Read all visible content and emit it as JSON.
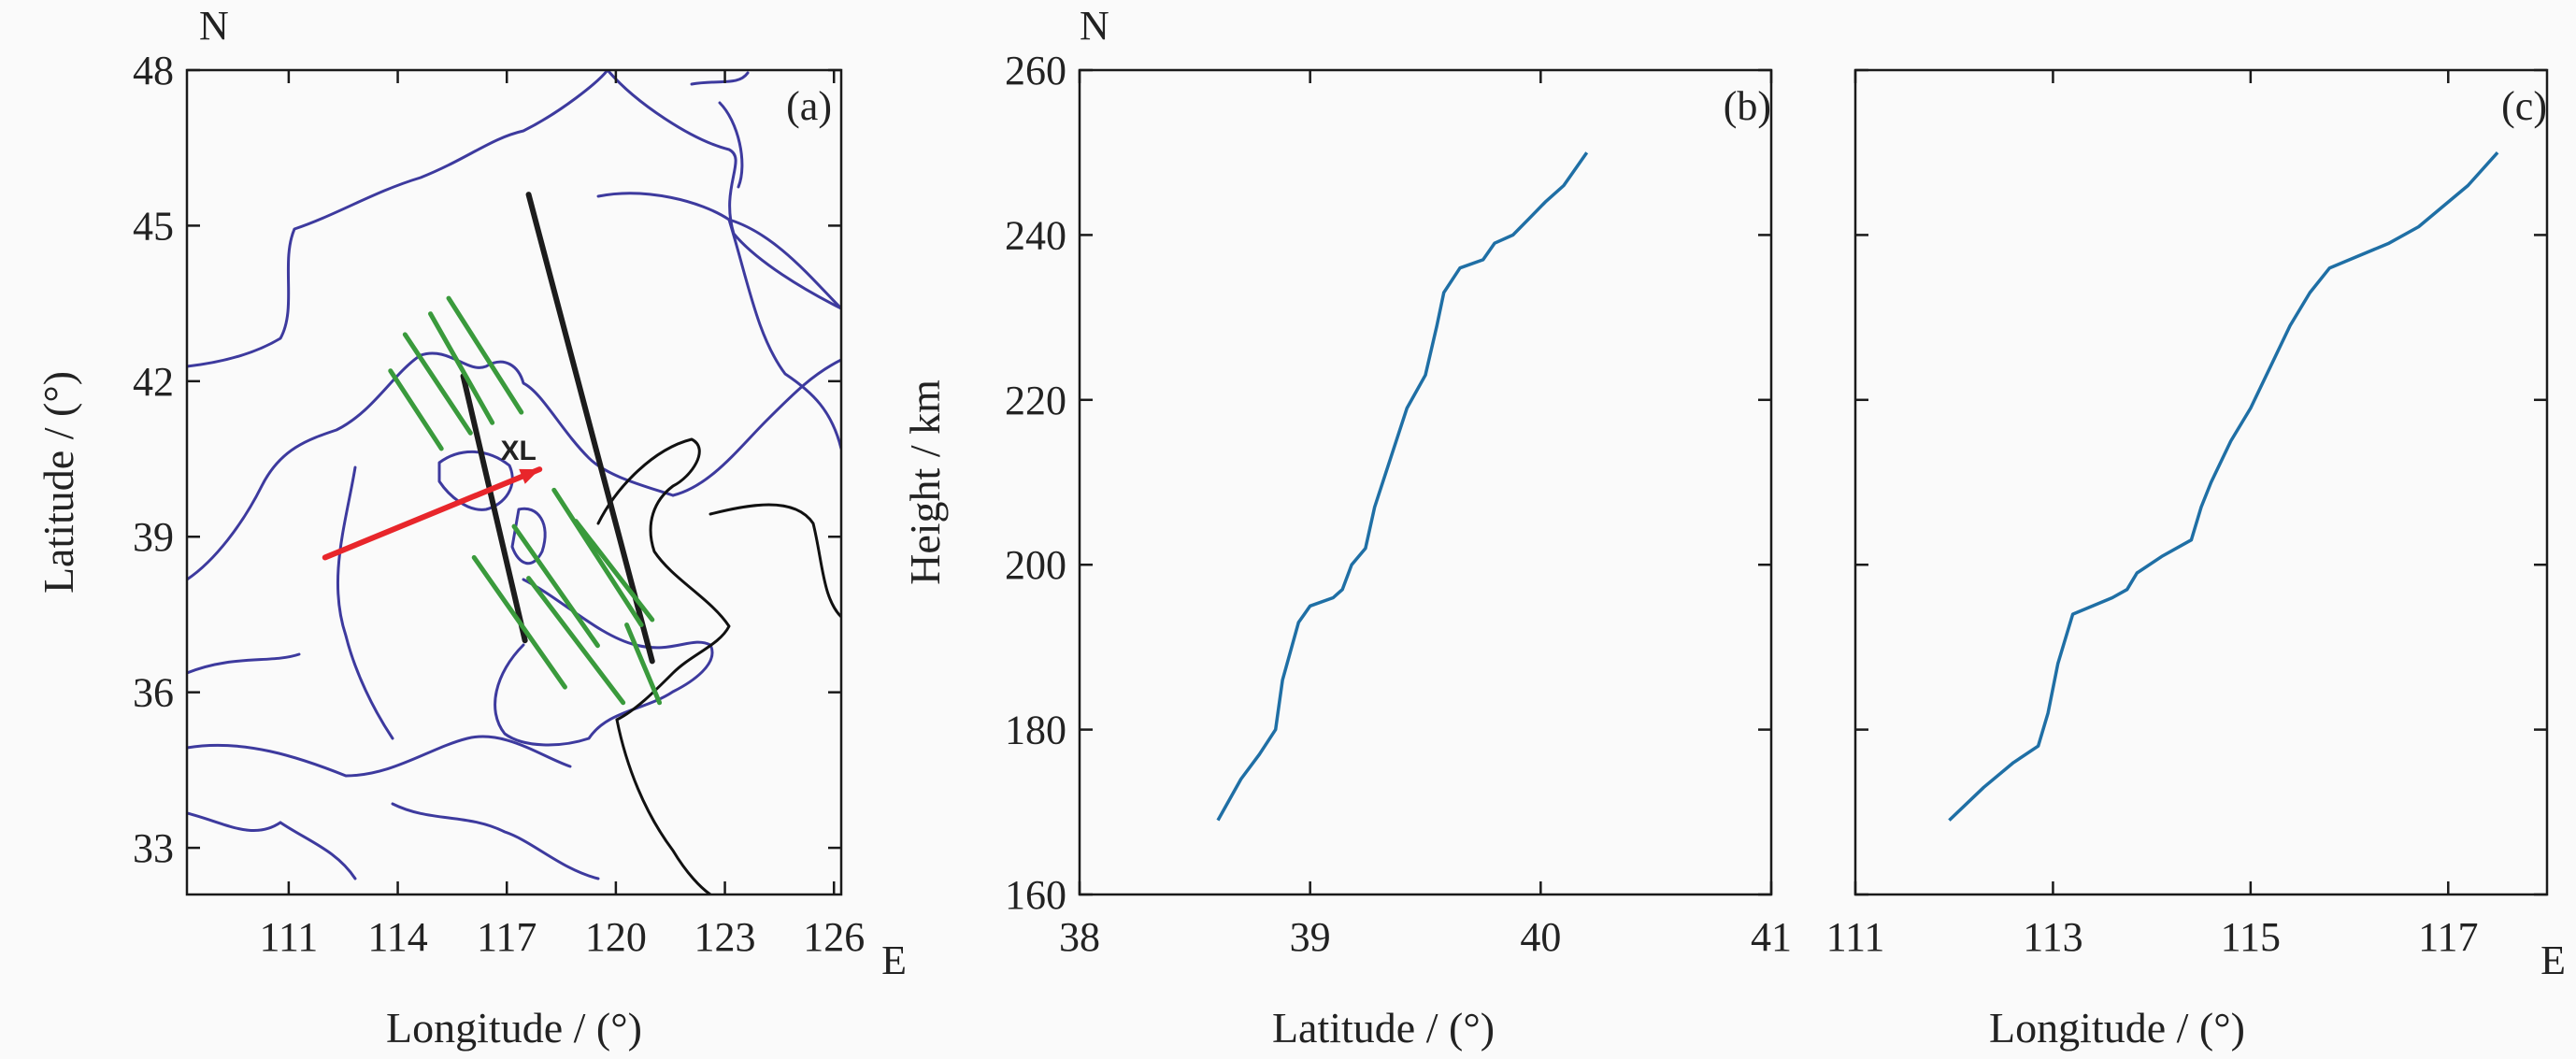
{
  "colors": {
    "background": "#fafafa",
    "frame": "#1a1a1a",
    "border": "#3d3a9e",
    "coastline": "#111111",
    "satellite_track": "#1c1c1c",
    "red_track": "#e8262b",
    "green_tracks": "#3a9a3c",
    "profile_line": "#1f6fa5"
  },
  "chart_data": [
    {
      "panel": "(a)",
      "type": "map",
      "xlabel": "Longitude / (°)",
      "ylabel": "Latitude / (°)",
      "x_unit": "E",
      "y_unit": "N",
      "xlim": [
        108.2,
        126.2
      ],
      "ylim": [
        32.1,
        48.0
      ],
      "x_ticks": [
        111,
        114,
        117,
        120,
        123,
        126
      ],
      "y_ticks": [
        33,
        36,
        39,
        42,
        45,
        48
      ],
      "station": {
        "label": "XL",
        "lon": 117.6,
        "lat": 40.3
      },
      "red_track": {
        "lon": [
          112.0,
          117.9
        ],
        "lat": [
          38.6,
          40.3
        ]
      },
      "black_tracks": [
        {
          "lon": [
            115.8,
            117.5
          ],
          "lat": [
            42.1,
            37.0
          ]
        },
        {
          "lon": [
            117.6,
            121.0
          ],
          "lat": [
            45.6,
            36.6
          ]
        }
      ],
      "green_tracks": [
        {
          "lon": [
            113.8,
            115.2
          ],
          "lat": [
            42.2,
            40.7
          ]
        },
        {
          "lon": [
            114.2,
            116.0
          ],
          "lat": [
            42.9,
            41.0
          ]
        },
        {
          "lon": [
            114.9,
            116.6
          ],
          "lat": [
            43.3,
            41.2
          ]
        },
        {
          "lon": [
            115.4,
            117.4
          ],
          "lat": [
            43.6,
            41.4
          ]
        },
        {
          "lon": [
            116.1,
            118.6
          ],
          "lat": [
            38.6,
            36.1
          ]
        },
        {
          "lon": [
            117.2,
            119.5
          ],
          "lat": [
            39.2,
            36.9
          ]
        },
        {
          "lon": [
            117.6,
            120.2
          ],
          "lat": [
            38.2,
            35.8
          ]
        },
        {
          "lon": [
            118.3,
            120.7
          ],
          "lat": [
            39.9,
            37.3
          ]
        },
        {
          "lon": [
            118.9,
            121.0
          ],
          "lat": [
            39.3,
            37.4
          ]
        },
        {
          "lon": [
            120.3,
            121.2
          ],
          "lat": [
            37.3,
            35.8
          ]
        }
      ]
    },
    {
      "panel": "(b)",
      "type": "line",
      "xlabel": "Latitude / (°)",
      "ylabel": "Height / km",
      "y_unit": "N",
      "xlim": [
        38,
        41
      ],
      "ylim": [
        160,
        260
      ],
      "x_ticks": [
        38,
        39,
        40,
        41
      ],
      "y_ticks": [
        160,
        180,
        200,
        220,
        240,
        260
      ],
      "series": [
        {
          "x": [
            38.6,
            38.7,
            38.78,
            38.85,
            38.88,
            38.95,
            39.0,
            39.1,
            39.14,
            39.18,
            39.24,
            39.28,
            39.35,
            39.42,
            39.5,
            39.55,
            39.58,
            39.65,
            39.75,
            39.8,
            39.88,
            39.95,
            40.02,
            40.1,
            40.2
          ],
          "y": [
            169,
            174,
            177,
            180,
            186,
            193,
            195,
            196,
            197,
            200,
            202,
            207,
            213,
            219,
            223,
            229,
            233,
            236,
            237,
            239,
            240,
            242,
            244,
            246,
            250
          ]
        }
      ]
    },
    {
      "panel": "(c)",
      "type": "line",
      "xlabel": "Longitude / (°)",
      "x_unit": "E",
      "xlim": [
        111,
        118
      ],
      "ylim": [
        160,
        260
      ],
      "x_ticks": [
        111,
        113,
        115,
        117
      ],
      "y_ticks": [
        160,
        180,
        200,
        220,
        240,
        260
      ],
      "series": [
        {
          "x": [
            111.95,
            112.3,
            112.6,
            112.85,
            112.95,
            113.05,
            113.2,
            113.6,
            113.75,
            113.85,
            114.1,
            114.4,
            114.5,
            114.6,
            114.8,
            115.0,
            115.2,
            115.4,
            115.6,
            115.8,
            116.0,
            116.4,
            116.7,
            117.0,
            117.2,
            117.5
          ],
          "y": [
            169,
            173,
            176,
            178,
            182,
            188,
            194,
            196,
            197,
            199,
            201,
            203,
            207,
            210,
            215,
            219,
            224,
            229,
            233,
            236,
            237,
            239,
            241,
            244,
            246,
            250
          ]
        }
      ]
    }
  ]
}
